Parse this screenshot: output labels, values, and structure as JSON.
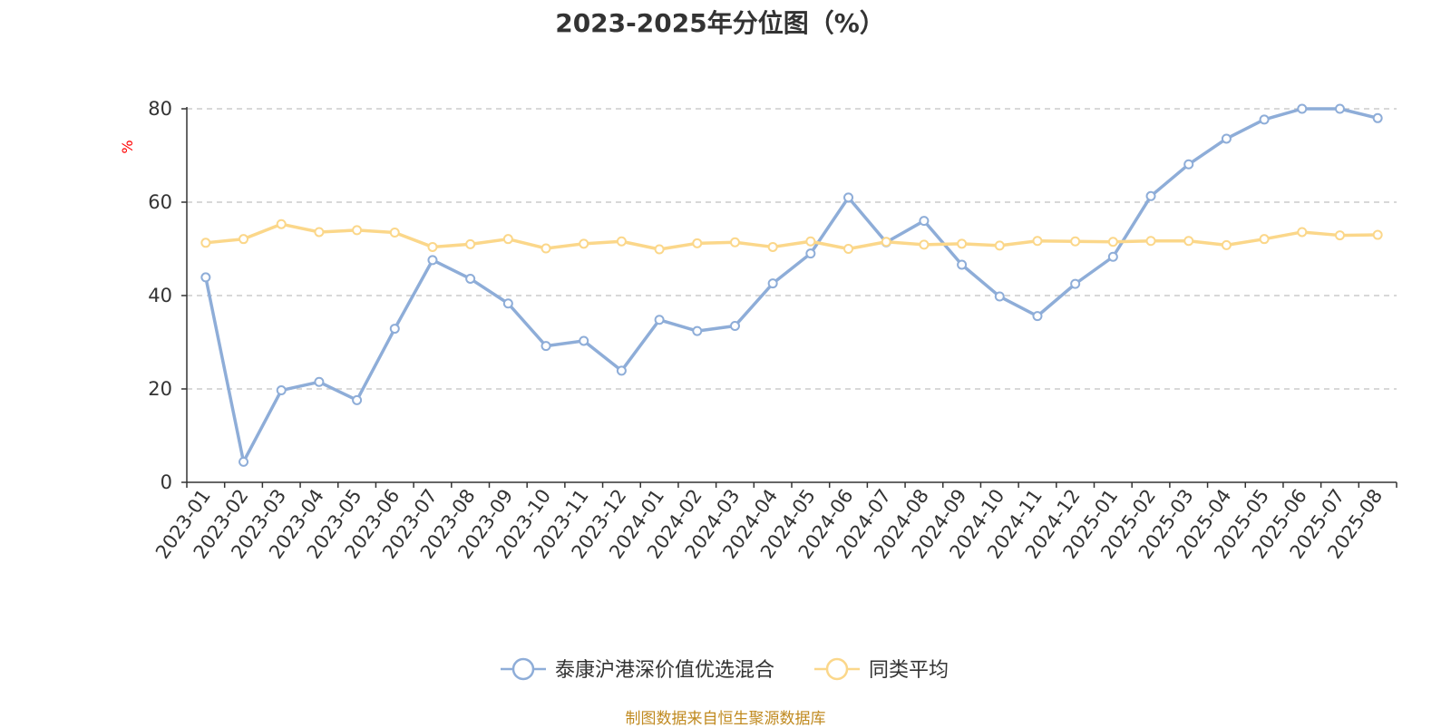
{
  "chart_data": {
    "type": "line",
    "title": "2023-2025年分位图（%）",
    "ylabel": "%",
    "ylim": [
      0,
      80
    ],
    "yticks": [
      0,
      20,
      40,
      60,
      80
    ],
    "grid": true,
    "legend_position": "bottom",
    "categories": [
      "2023-01",
      "2023-02",
      "2023-03",
      "2023-04",
      "2023-05",
      "2023-06",
      "2023-07",
      "2023-08",
      "2023-09",
      "2023-10",
      "2023-11",
      "2023-12",
      "2024-01",
      "2024-02",
      "2024-03",
      "2024-04",
      "2024-05",
      "2024-06",
      "2024-07",
      "2024-08",
      "2024-09",
      "2024-10",
      "2024-11",
      "2024-12",
      "2025-01",
      "2025-02",
      "2025-03",
      "2025-04",
      "2025-05",
      "2025-06",
      "2025-07",
      "2025-08"
    ],
    "series": [
      {
        "name": "泰康沪港深价值优选混合",
        "color": "#8eadd8",
        "values": [
          43.9,
          4.4,
          19.7,
          21.5,
          17.6,
          32.9,
          47.6,
          43.6,
          38.3,
          29.2,
          30.3,
          23.9,
          34.8,
          32.4,
          33.5,
          42.6,
          49.0,
          61.0,
          51.4,
          56.0,
          46.6,
          39.8,
          35.6,
          42.5,
          48.3,
          61.3,
          68.1,
          73.6,
          77.7,
          80.0,
          80.0,
          78.0
        ]
      },
      {
        "name": "同类平均",
        "color": "#fbd78a",
        "values": [
          51.3,
          52.1,
          55.3,
          53.6,
          54.0,
          53.5,
          50.4,
          51.0,
          52.1,
          50.1,
          51.1,
          51.6,
          49.9,
          51.2,
          51.4,
          50.4,
          51.6,
          50.0,
          51.5,
          50.9,
          51.1,
          50.7,
          51.7,
          51.6,
          51.5,
          51.7,
          51.7,
          50.8,
          52.1,
          53.6,
          52.9,
          53.0
        ]
      }
    ]
  },
  "footer": {
    "source": "制图数据来自恒生聚源数据库"
  }
}
